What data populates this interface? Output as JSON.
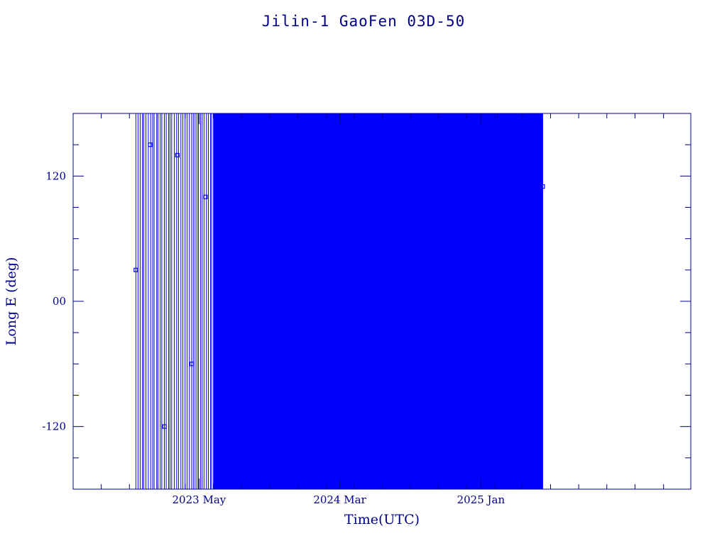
{
  "chart_data": {
    "type": "line",
    "title": "Jilin-1 GaoFen 03D-50",
    "xlabel": "Time(UTC)",
    "ylabel": "Long E (deg)",
    "x_tick_labels": [
      "2023 May",
      "2024 Mar",
      "2025 Jan"
    ],
    "y_tick_labels": [
      "120",
      "00",
      "-120"
    ],
    "y_ticks": [
      120,
      0,
      -120
    ],
    "ylim": [
      -180,
      180
    ],
    "xlim": [
      "2022-08-01",
      "2026-04-01"
    ],
    "x_ticks": [
      "2023-05-01",
      "2024-03-01",
      "2025-01-01"
    ],
    "grid": false,
    "series": [
      {
        "color": "#0000ff",
        "x": [
          "2022-12-15",
          "2023-01-15",
          "2023-02-15",
          "2023-03-15",
          "2023-04-15",
          "2023-05-15",
          "2023-06-15",
          "2023-07-15",
          "2023-09-15",
          "2023-11-15",
          "2024-01-15",
          "2024-03-15",
          "2024-05-15",
          "2024-07-15",
          "2024-09-15",
          "2024-11-15",
          "2025-01-15",
          "2025-03-15",
          "2025-05-15"
        ],
        "y": [
          30,
          150,
          -120,
          140,
          -60,
          100,
          -150,
          90,
          120,
          -130,
          80,
          60,
          -100,
          90,
          -140,
          70,
          85,
          -120,
          110
        ]
      }
    ]
  }
}
